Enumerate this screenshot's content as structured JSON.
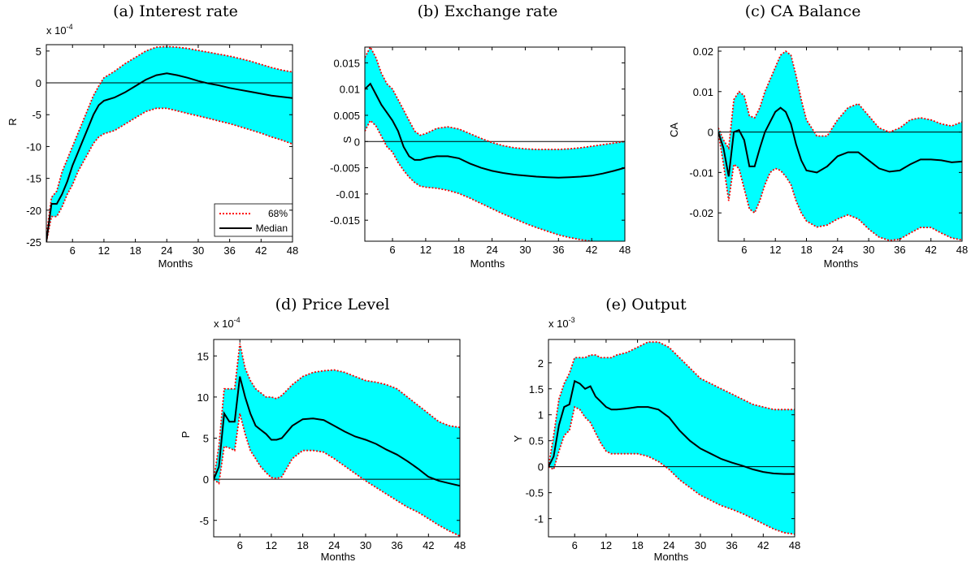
{
  "colors": {
    "band": "#00ffff",
    "band_edge": "#ff0000",
    "median": "#000000",
    "zero_line": "#000000"
  },
  "legend": {
    "band_label": "68%",
    "median_label": "Median"
  },
  "chart_data": [
    {
      "type": "area",
      "title": "(a) Interest rate",
      "xlabel": "Months",
      "ylabel": "R",
      "multiplier": "x 10^-4",
      "xlim": [
        1,
        48
      ],
      "ylim": [
        -25,
        6
      ],
      "xticks": [
        6,
        12,
        18,
        24,
        30,
        36,
        42,
        48
      ],
      "yticks": [
        -25,
        -20,
        -15,
        -10,
        -5,
        0,
        5
      ],
      "x": [
        1,
        2,
        3,
        4,
        5,
        6,
        7,
        8,
        9,
        10,
        11,
        12,
        14,
        16,
        18,
        20,
        22,
        24,
        26,
        28,
        30,
        32,
        34,
        36,
        38,
        40,
        42,
        44,
        46,
        48
      ],
      "upper": [
        -24,
        -18,
        -17,
        -14,
        -12,
        -10,
        -8,
        -6,
        -4,
        -2,
        -0.5,
        0.8,
        1.8,
        3,
        4,
        5,
        5.6,
        5.7,
        5.6,
        5.4,
        5.1,
        4.8,
        4.5,
        4.2,
        3.8,
        3.4,
        2.9,
        2.4,
        2,
        1.7
      ],
      "median": [
        -25,
        -19,
        -19,
        -17.5,
        -15.5,
        -13,
        -11,
        -9,
        -7,
        -5,
        -3.5,
        -2.8,
        -2.3,
        -1.5,
        -0.5,
        0.5,
        1.2,
        1.5,
        1.2,
        0.8,
        0.3,
        -0.1,
        -0.4,
        -0.8,
        -1.1,
        -1.4,
        -1.7,
        -2,
        -2.2,
        -2.4
      ],
      "lower": [
        -25,
        -21,
        -21,
        -19.5,
        -17.5,
        -16,
        -14,
        -12.5,
        -11,
        -9.5,
        -8.5,
        -8,
        -7.5,
        -6.5,
        -5.5,
        -4.5,
        -4,
        -4,
        -4.4,
        -4.8,
        -5.2,
        -5.6,
        -6,
        -6.4,
        -6.9,
        -7.4,
        -7.9,
        -8.5,
        -9,
        -9.6
      ]
    },
    {
      "type": "area",
      "title": "(b) Exchange rate",
      "xlabel": "Months",
      "ylabel": "S",
      "xlim": [
        1,
        48
      ],
      "ylim": [
        -0.019,
        0.018
      ],
      "xticks": [
        6,
        12,
        18,
        24,
        30,
        36,
        42,
        48
      ],
      "yticks": [
        -0.015,
        -0.01,
        -0.005,
        0,
        0.005,
        0.01,
        0.015
      ],
      "x": [
        1,
        2,
        3,
        4,
        5,
        6,
        7,
        8,
        9,
        10,
        11,
        12,
        14,
        16,
        18,
        20,
        22,
        24,
        26,
        28,
        30,
        32,
        34,
        36,
        38,
        40,
        42,
        44,
        46,
        48
      ],
      "upper": [
        0.016,
        0.018,
        0.016,
        0.013,
        0.011,
        0.01,
        0.008,
        0.006,
        0.004,
        0.002,
        0.0012,
        0.0015,
        0.0025,
        0.0028,
        0.0024,
        0.0015,
        0.0006,
        -0.0002,
        -0.0008,
        -0.0012,
        -0.0014,
        -0.0015,
        -0.0015,
        -0.0015,
        -0.0014,
        -0.0012,
        -0.0009,
        -0.0006,
        -0.0003,
        0
      ],
      "median": [
        0.01,
        0.011,
        0.009,
        0.007,
        0.0055,
        0.004,
        0.002,
        -0.001,
        -0.0028,
        -0.0035,
        -0.0035,
        -0.0032,
        -0.0028,
        -0.0028,
        -0.0032,
        -0.0042,
        -0.005,
        -0.0056,
        -0.006,
        -0.0063,
        -0.0065,
        -0.0067,
        -0.0068,
        -0.0069,
        -0.0068,
        -0.0067,
        -0.0065,
        -0.0061,
        -0.0056,
        -0.005
      ],
      "lower": [
        0.002,
        0.004,
        0.003,
        0.001,
        -0.001,
        -0.002,
        -0.004,
        -0.0055,
        -0.0068,
        -0.0078,
        -0.0085,
        -0.0087,
        -0.0089,
        -0.0093,
        -0.0099,
        -0.0108,
        -0.0118,
        -0.0128,
        -0.0138,
        -0.0147,
        -0.0156,
        -0.0164,
        -0.0171,
        -0.0178,
        -0.0183,
        -0.0187,
        -0.019,
        -0.0192,
        -0.0193,
        -0.0193
      ]
    },
    {
      "type": "area",
      "title": "(c) CA Balance",
      "xlabel": "Months",
      "ylabel": "CA",
      "xlim": [
        1,
        48
      ],
      "ylim": [
        -0.027,
        0.021
      ],
      "xticks": [
        6,
        12,
        18,
        24,
        30,
        36,
        42,
        48
      ],
      "yticks": [
        -0.02,
        -0.01,
        0,
        0.01,
        0.02
      ],
      "x": [
        1,
        2,
        3,
        4,
        5,
        6,
        7,
        8,
        9,
        10,
        11,
        12,
        13,
        14,
        15,
        16,
        17,
        18,
        20,
        22,
        24,
        26,
        28,
        30,
        32,
        34,
        36,
        38,
        40,
        42,
        44,
        46,
        48
      ],
      "upper": [
        0.001,
        -0.002,
        -0.004,
        0.008,
        0.01,
        0.009,
        0.004,
        0.0035,
        0.006,
        0.01,
        0.013,
        0.016,
        0.019,
        0.02,
        0.019,
        0.014,
        0.008,
        0.003,
        -0.001,
        -0.001,
        0.003,
        0.006,
        0.007,
        0.004,
        0.001,
        0,
        0.001,
        0.003,
        0.0035,
        0.003,
        0.002,
        0.0015,
        0.0025
      ],
      "median": [
        0,
        -0.004,
        -0.011,
        0,
        0.0005,
        -0.002,
        -0.0085,
        -0.0085,
        -0.004,
        0,
        0.0025,
        0.005,
        0.006,
        0.005,
        0.002,
        -0.003,
        -0.007,
        -0.0095,
        -0.01,
        -0.0085,
        -0.006,
        -0.005,
        -0.005,
        -0.007,
        -0.009,
        -0.0098,
        -0.0095,
        -0.008,
        -0.0068,
        -0.0068,
        -0.007,
        -0.0075,
        -0.0073
      ],
      "lower": [
        0,
        -0.008,
        -0.017,
        -0.008,
        -0.009,
        -0.014,
        -0.019,
        -0.02,
        -0.017,
        -0.013,
        -0.01,
        -0.009,
        -0.0095,
        -0.011,
        -0.013,
        -0.017,
        -0.02,
        -0.022,
        -0.0235,
        -0.023,
        -0.0215,
        -0.0205,
        -0.0215,
        -0.024,
        -0.026,
        -0.0268,
        -0.0265,
        -0.025,
        -0.0236,
        -0.0236,
        -0.025,
        -0.0262,
        -0.0267
      ]
    },
    {
      "type": "area",
      "title": "(d) Price Level",
      "xlabel": "Months",
      "ylabel": "P",
      "multiplier": "x 10^-4",
      "xlim": [
        1,
        48
      ],
      "ylim": [
        -7,
        17
      ],
      "xticks": [
        6,
        12,
        18,
        24,
        30,
        36,
        42,
        48
      ],
      "yticks": [
        -5,
        0,
        5,
        10,
        15
      ],
      "x": [
        1,
        2,
        3,
        4,
        5,
        6,
        7,
        8,
        9,
        10,
        11,
        12,
        13,
        14,
        16,
        18,
        20,
        22,
        24,
        26,
        28,
        30,
        32,
        34,
        36,
        38,
        40,
        42,
        44,
        46,
        48
      ],
      "upper": [
        0,
        4,
        11,
        11,
        11,
        16.5,
        13.5,
        12,
        11,
        10.5,
        10,
        10,
        9.8,
        10.2,
        11.5,
        12.5,
        13,
        13.2,
        13.3,
        13,
        12.5,
        12,
        11.8,
        11.5,
        11,
        10,
        9,
        8,
        7,
        6.5,
        6.3
      ],
      "median": [
        0,
        1.5,
        8,
        7,
        7,
        12.5,
        10,
        8,
        6.5,
        6,
        5.5,
        4.8,
        4.8,
        5,
        6.5,
        7.3,
        7.4,
        7.2,
        6.5,
        5.8,
        5.2,
        4.8,
        4.3,
        3.6,
        3,
        2.2,
        1.3,
        0.3,
        -0.2,
        -0.5,
        -0.8
      ],
      "lower": [
        0,
        -0.5,
        4,
        3.8,
        3.5,
        8,
        5.5,
        3.5,
        2.5,
        1.5,
        0.8,
        0.2,
        0.1,
        0.3,
        2.5,
        3.5,
        3.5,
        3.3,
        2.5,
        1.6,
        0.7,
        -0.2,
        -1,
        -1.8,
        -2.6,
        -3.4,
        -4,
        -4.8,
        -5.6,
        -6.3,
        -6.9
      ]
    },
    {
      "type": "area",
      "title": "(e) Output",
      "xlabel": "Months",
      "ylabel": "Y",
      "multiplier": "x 10^-3",
      "xlim": [
        1,
        48
      ],
      "ylim": [
        -1.35,
        2.45
      ],
      "xticks": [
        6,
        12,
        18,
        24,
        30,
        36,
        42,
        48
      ],
      "yticks": [
        -1,
        -0.5,
        0,
        0.5,
        1,
        1.5,
        2
      ],
      "x": [
        1,
        2,
        3,
        4,
        5,
        6,
        7,
        8,
        9,
        10,
        11,
        12,
        13,
        14,
        16,
        18,
        20,
        22,
        24,
        26,
        28,
        30,
        32,
        34,
        36,
        38,
        40,
        42,
        44,
        46,
        48
      ],
      "upper": [
        0,
        0.6,
        1.3,
        1.6,
        1.8,
        2.1,
        2.1,
        2.1,
        2.15,
        2.15,
        2.1,
        2.1,
        2.1,
        2.15,
        2.2,
        2.3,
        2.4,
        2.4,
        2.3,
        2.1,
        1.9,
        1.7,
        1.6,
        1.5,
        1.4,
        1.3,
        1.2,
        1.15,
        1.1,
        1.1,
        1.1
      ],
      "median": [
        0,
        0.2,
        0.8,
        1.15,
        1.2,
        1.65,
        1.6,
        1.5,
        1.55,
        1.35,
        1.25,
        1.15,
        1.1,
        1.1,
        1.12,
        1.15,
        1.15,
        1.1,
        0.95,
        0.7,
        0.5,
        0.35,
        0.25,
        0.15,
        0.08,
        0.02,
        -0.05,
        -0.1,
        -0.13,
        -0.14,
        -0.14
      ],
      "lower": [
        0,
        -0.05,
        0.3,
        0.6,
        0.7,
        1.15,
        1.1,
        0.95,
        0.85,
        0.65,
        0.45,
        0.3,
        0.25,
        0.25,
        0.25,
        0.25,
        0.2,
        0.1,
        -0.05,
        -0.25,
        -0.4,
        -0.55,
        -0.65,
        -0.75,
        -0.82,
        -0.9,
        -1,
        -1.1,
        -1.2,
        -1.27,
        -1.3
      ]
    }
  ]
}
